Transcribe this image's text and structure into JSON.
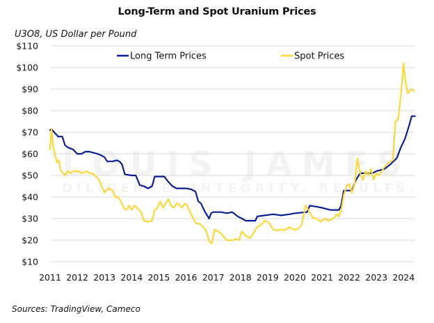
{
  "chart_data": {
    "type": "line",
    "title": "Long-Term and Spot Uranium Prices",
    "subtitle": "U3O8, US Dollar per Pound",
    "xlabel": "",
    "ylabel": "U3O8, US Dollar per Pound",
    "source": "Sources: TradingView, Cameco",
    "watermark": {
      "line1": "LOUIS JAMES",
      "line2": "DILIGENCE. INTEGRITY. RESULTS."
    },
    "ylim": [
      10,
      110
    ],
    "xlim": [
      2011,
      2024.45
    ],
    "grid": true,
    "legend_position": "top-center",
    "y_ticks": [
      10,
      20,
      30,
      40,
      50,
      60,
      70,
      80,
      90,
      100,
      110
    ],
    "y_tick_labels": [
      "$10",
      "$20",
      "$30",
      "$40",
      "$50",
      "$60",
      "$70",
      "$80",
      "$90",
      "$100",
      "$110"
    ],
    "x_ticks": [
      2011,
      2012,
      2013,
      2014,
      2015,
      2016,
      2017,
      2018,
      2019,
      2020,
      2021,
      2022,
      2023,
      2024
    ],
    "x_tick_labels": [
      "2011",
      "2012",
      "2013",
      "2014",
      "2015",
      "2016",
      "2017",
      "2018",
      "2019",
      "2020",
      "2021",
      "2022",
      "2023",
      "2024"
    ],
    "series": [
      {
        "name": "Long Term Prices",
        "color": "#0a1f96",
        "x": [
          2011.0,
          2011.05,
          2011.15,
          2011.3,
          2011.45,
          2011.55,
          2011.65,
          2011.85,
          2012.0,
          2012.15,
          2012.3,
          2012.45,
          2012.6,
          2012.75,
          2012.85,
          2013.0,
          2013.1,
          2013.3,
          2013.45,
          2013.55,
          2013.65,
          2013.75,
          2014.0,
          2014.15,
          2014.3,
          2014.45,
          2014.6,
          2014.75,
          2014.85,
          2015.2,
          2015.35,
          2015.5,
          2015.65,
          2016.0,
          2016.2,
          2016.35,
          2016.45,
          2016.55,
          2016.7,
          2016.85,
          2016.92,
          2017.0,
          2017.3,
          2017.5,
          2017.7,
          2017.9,
          2018.05,
          2018.2,
          2018.55,
          2018.62,
          2018.9,
          2019.2,
          2019.5,
          2019.8,
          2020.0,
          2020.45,
          2020.55,
          2020.8,
          2021.0,
          2021.3,
          2021.62,
          2021.7,
          2021.8,
          2022.1,
          2022.25,
          2022.4,
          2022.55,
          2022.85,
          2023.0,
          2023.3,
          2023.5,
          2023.75,
          2023.9,
          2024.05,
          2024.2,
          2024.3,
          2024.42
        ],
        "values": [
          71,
          71.5,
          70,
          68,
          68,
          64,
          63,
          62,
          60,
          60,
          61,
          61,
          60.5,
          60,
          59.5,
          58.5,
          56.5,
          56.5,
          57,
          56.5,
          55,
          50.5,
          50,
          50,
          45.5,
          45,
          44,
          45,
          49.5,
          49.5,
          47,
          45,
          44,
          44,
          43.5,
          42.5,
          38,
          37,
          33,
          30,
          32.5,
          33,
          33,
          32.5,
          33,
          31,
          30,
          29,
          29,
          31,
          31.5,
          32,
          31.5,
          32,
          32.5,
          33,
          36,
          35.5,
          35,
          34,
          34,
          36,
          43,
          43,
          48,
          51,
          51,
          51,
          52,
          53,
          55,
          58,
          63,
          67,
          73,
          77.5,
          77.5
        ]
      },
      {
        "name": "Spot Prices",
        "color": "#fdd835",
        "x": [
          2011.0,
          2011.05,
          2011.12,
          2011.25,
          2011.32,
          2011.4,
          2011.45,
          2011.55,
          2011.65,
          2011.75,
          2011.85,
          2012.0,
          2012.1,
          2012.2,
          2012.35,
          2012.45,
          2012.55,
          2012.65,
          2012.8,
          2013.0,
          2013.15,
          2013.3,
          2013.4,
          2013.5,
          2013.6,
          2013.7,
          2013.8,
          2013.9,
          2014.0,
          2014.1,
          2014.2,
          2014.35,
          2014.45,
          2014.6,
          2014.75,
          2014.85,
          2014.95,
          2015.05,
          2015.15,
          2015.25,
          2015.35,
          2015.45,
          2015.55,
          2015.65,
          2015.75,
          2015.85,
          2015.95,
          2016.05,
          2016.15,
          2016.35,
          2016.5,
          2016.65,
          2016.75,
          2016.85,
          2016.95,
          2017.05,
          2017.3,
          2017.5,
          2017.7,
          2017.85,
          2017.95,
          2018.05,
          2018.2,
          2018.35,
          2018.5,
          2018.6,
          2018.75,
          2018.9,
          2019.05,
          2019.2,
          2019.35,
          2019.5,
          2019.6,
          2019.8,
          2019.95,
          2020.1,
          2020.25,
          2020.4,
          2020.55,
          2020.65,
          2020.8,
          2020.95,
          2021.1,
          2021.25,
          2021.4,
          2021.55,
          2021.62,
          2021.72,
          2021.8,
          2021.9,
          2022.0,
          2022.1,
          2022.2,
          2022.3,
          2022.4,
          2022.5,
          2022.6,
          2022.7,
          2022.8,
          2022.9,
          2023.0,
          2023.1,
          2023.2,
          2023.3,
          2023.45,
          2023.6,
          2023.7,
          2023.8,
          2023.9,
          2024.0,
          2024.05,
          2024.15,
          2024.3,
          2024.38
        ],
        "values": [
          62,
          71.5,
          63,
          56,
          57,
          52,
          51.5,
          50,
          52,
          51,
          52,
          52,
          51.5,
          51,
          52,
          51,
          51,
          50,
          48,
          42,
          44,
          43,
          40,
          40,
          38,
          35,
          34,
          36,
          34,
          36,
          35,
          33,
          29,
          28.5,
          29,
          34,
          35,
          38,
          35,
          37,
          39,
          36,
          35,
          37,
          36.5,
          35,
          37,
          36,
          33,
          28,
          27.5,
          26,
          24,
          19.5,
          18.5,
          25,
          23,
          20,
          20,
          20.5,
          20,
          24,
          22,
          21,
          23.5,
          26,
          27,
          29,
          28,
          25,
          24.5,
          25,
          24.5,
          26,
          25,
          25,
          27,
          36,
          33,
          30.5,
          30,
          28.5,
          30,
          29,
          30,
          32,
          31,
          35,
          41,
          45,
          46,
          42,
          46,
          58,
          51,
          48,
          52,
          50,
          53,
          48,
          51,
          50,
          52,
          54,
          56,
          57,
          75,
          76,
          87,
          102,
          95,
          88,
          90,
          89
        ]
      }
    ]
  }
}
